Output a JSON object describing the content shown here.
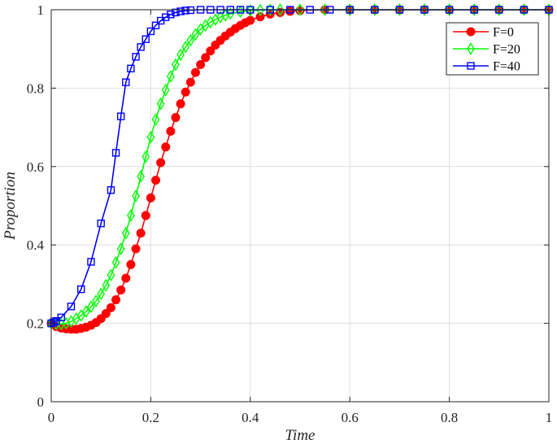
{
  "chart_data": {
    "type": "line",
    "title": "",
    "xlabel": "Time",
    "ylabel": "Proportion",
    "xlim": [
      0,
      1
    ],
    "ylim": [
      0,
      1
    ],
    "xticks": [
      "0",
      "0.2",
      "0.4",
      "0.6",
      "0.8",
      "1"
    ],
    "yticks": [
      "0",
      "0.2",
      "0.4",
      "0.6",
      "0.8",
      "1"
    ],
    "grid": true,
    "legend_position": "top-right",
    "series": [
      {
        "name": "F=0",
        "color": "#ff0000",
        "marker": "circle-filled",
        "x": [
          0,
          0.01,
          0.02,
          0.03,
          0.04,
          0.05,
          0.06,
          0.07,
          0.08,
          0.09,
          0.1,
          0.11,
          0.12,
          0.13,
          0.14,
          0.15,
          0.16,
          0.17,
          0.18,
          0.19,
          0.2,
          0.21,
          0.22,
          0.23,
          0.24,
          0.25,
          0.26,
          0.27,
          0.28,
          0.29,
          0.3,
          0.31,
          0.32,
          0.33,
          0.34,
          0.35,
          0.36,
          0.37,
          0.38,
          0.39,
          0.4,
          0.42,
          0.44,
          0.46,
          0.48,
          0.5,
          0.55,
          0.6,
          0.65,
          0.7,
          0.75,
          0.8,
          0.85,
          0.9,
          0.95,
          1.0
        ],
        "y": [
          0.2,
          0.192,
          0.188,
          0.186,
          0.185,
          0.185,
          0.187,
          0.19,
          0.195,
          0.202,
          0.212,
          0.225,
          0.24,
          0.26,
          0.285,
          0.315,
          0.35,
          0.39,
          0.43,
          0.475,
          0.52,
          0.565,
          0.61,
          0.65,
          0.69,
          0.725,
          0.76,
          0.79,
          0.815,
          0.84,
          0.86,
          0.878,
          0.895,
          0.91,
          0.922,
          0.933,
          0.943,
          0.952,
          0.96,
          0.967,
          0.973,
          0.982,
          0.989,
          0.993,
          0.996,
          0.998,
          1.0,
          1.0,
          1.0,
          1.0,
          1.0,
          1.0,
          1.0,
          1.0,
          1.0,
          1.0
        ]
      },
      {
        "name": "F=20",
        "color": "#00ff00",
        "marker": "diamond-open",
        "x": [
          0,
          0.01,
          0.02,
          0.03,
          0.04,
          0.05,
          0.06,
          0.07,
          0.08,
          0.09,
          0.1,
          0.11,
          0.12,
          0.13,
          0.14,
          0.15,
          0.16,
          0.17,
          0.18,
          0.19,
          0.2,
          0.21,
          0.22,
          0.23,
          0.24,
          0.25,
          0.26,
          0.27,
          0.28,
          0.29,
          0.3,
          0.31,
          0.32,
          0.33,
          0.34,
          0.35,
          0.36,
          0.38,
          0.4,
          0.42,
          0.44,
          0.46,
          0.5,
          0.55,
          0.6,
          0.65,
          0.7,
          0.75,
          0.8,
          0.85,
          0.9,
          0.95,
          1.0
        ],
        "y": [
          0.2,
          0.198,
          0.198,
          0.2,
          0.205,
          0.212,
          0.22,
          0.23,
          0.242,
          0.257,
          0.275,
          0.297,
          0.323,
          0.355,
          0.39,
          0.43,
          0.475,
          0.525,
          0.575,
          0.625,
          0.675,
          0.72,
          0.76,
          0.795,
          0.83,
          0.86,
          0.885,
          0.905,
          0.922,
          0.937,
          0.95,
          0.96,
          0.968,
          0.975,
          0.981,
          0.986,
          0.99,
          0.995,
          0.998,
          0.999,
          1.0,
          1.0,
          1.0,
          1.0,
          1.0,
          1.0,
          1.0,
          1.0,
          1.0,
          1.0,
          1.0,
          1.0,
          1.0
        ]
      },
      {
        "name": "F=40",
        "color": "#0000ff",
        "marker": "square-open",
        "x": [
          0,
          0.005,
          0.01,
          0.02,
          0.04,
          0.06,
          0.08,
          0.1,
          0.12,
          0.13,
          0.14,
          0.15,
          0.16,
          0.17,
          0.18,
          0.19,
          0.2,
          0.21,
          0.22,
          0.23,
          0.24,
          0.25,
          0.26,
          0.27,
          0.28,
          0.3,
          0.32,
          0.34,
          0.36,
          0.38,
          0.4,
          0.44,
          0.48,
          0.52,
          0.56,
          0.6,
          0.65,
          0.7,
          0.75,
          0.8,
          0.85,
          0.9,
          0.95,
          1.0
        ],
        "y": [
          0.2,
          0.203,
          0.206,
          0.215,
          0.243,
          0.287,
          0.357,
          0.455,
          0.54,
          0.635,
          0.728,
          0.815,
          0.85,
          0.88,
          0.905,
          0.925,
          0.945,
          0.96,
          0.972,
          0.981,
          0.988,
          0.993,
          0.996,
          0.998,
          0.999,
          1.0,
          1.0,
          1.0,
          1.0,
          1.0,
          1.0,
          1.0,
          1.0,
          1.0,
          1.0,
          1.0,
          1.0,
          1.0,
          1.0,
          1.0,
          1.0,
          1.0,
          1.0,
          1.0
        ]
      }
    ]
  }
}
